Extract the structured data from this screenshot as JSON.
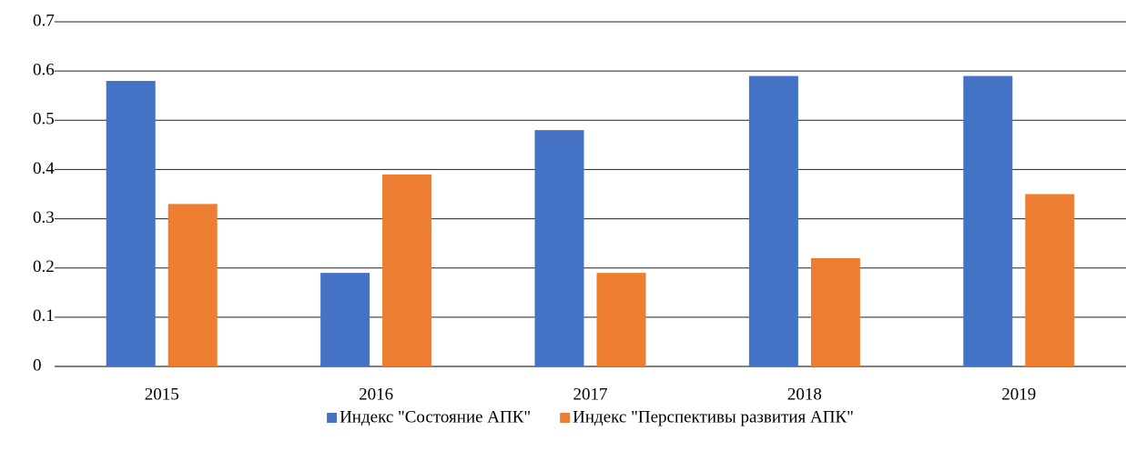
{
  "chart_data": {
    "type": "bar",
    "categories": [
      "2015",
      "2016",
      "2017",
      "2018",
      "2019"
    ],
    "series": [
      {
        "name": "Индекс \"Состояние АПК\"",
        "color": "#4472c4",
        "values": [
          0.58,
          0.19,
          0.48,
          0.59,
          0.59
        ]
      },
      {
        "name": "Индекс \"Перспективы развития АПК\"",
        "color": "#ed7d31",
        "values": [
          0.33,
          0.39,
          0.19,
          0.22,
          0.35
        ]
      }
    ],
    "ylim": [
      0,
      0.7
    ],
    "yticks": [
      0,
      0.1,
      0.2,
      0.3,
      0.4,
      0.5,
      0.6,
      0.7
    ],
    "grid": true,
    "legend": "bottom"
  }
}
